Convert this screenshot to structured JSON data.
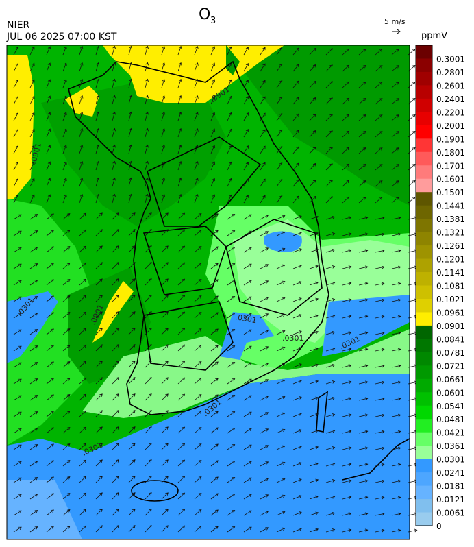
{
  "header": {
    "title": {
      "main": "O",
      "sub": "3"
    },
    "agency": "NIER",
    "datetime": "JUL 06 2025 07:00 KST"
  },
  "wind_scale": {
    "label": "5 m/s"
  },
  "colorbar": {
    "unit": "ppmV",
    "levels": [
      {
        "label": "0.3001",
        "color": "#6b0000"
      },
      {
        "label": "0.2801",
        "color": "#8b0000"
      },
      {
        "label": "0.2601",
        "color": "#a00000"
      },
      {
        "label": "0.2401",
        "color": "#b80000"
      },
      {
        "label": "0.2201",
        "color": "#d00000"
      },
      {
        "label": "0.2001",
        "color": "#e80000"
      },
      {
        "label": "0.1901",
        "color": "#ff0000"
      },
      {
        "label": "0.1801",
        "color": "#ff3535"
      },
      {
        "label": "0.1701",
        "color": "#ff5a5a"
      },
      {
        "label": "0.1601",
        "color": "#ff7b7b"
      },
      {
        "label": "0.1501",
        "color": "#ff9c9c"
      },
      {
        "label": "0.1441",
        "color": "#5e5600"
      },
      {
        "label": "0.1381",
        "color": "#6e6600"
      },
      {
        "label": "0.1321",
        "color": "#7e7500"
      },
      {
        "label": "0.1261",
        "color": "#8e8400"
      },
      {
        "label": "0.1201",
        "color": "#9e9300"
      },
      {
        "label": "0.1141",
        "color": "#aea200"
      },
      {
        "label": "0.1081",
        "color": "#beb100"
      },
      {
        "label": "0.1021",
        "color": "#cec000"
      },
      {
        "label": "0.0961",
        "color": "#dfd000"
      },
      {
        "label": "0.0901",
        "color": "#ffee00"
      },
      {
        "label": "0.0841",
        "color": "#006600"
      },
      {
        "label": "0.0781",
        "color": "#007700"
      },
      {
        "label": "0.0721",
        "color": "#008800"
      },
      {
        "label": "0.0661",
        "color": "#009900"
      },
      {
        "label": "0.0601",
        "color": "#00aa00"
      },
      {
        "label": "0.0541",
        "color": "#00c000"
      },
      {
        "label": "0.0481",
        "color": "#00d800"
      },
      {
        "label": "0.0421",
        "color": "#22ee22"
      },
      {
        "label": "0.0361",
        "color": "#66ff66"
      },
      {
        "label": "0.0301",
        "color": "#99ff99"
      },
      {
        "label": "0.0241",
        "color": "#3399ff"
      },
      {
        "label": "0.0181",
        "color": "#4da6ff"
      },
      {
        "label": "0.0121",
        "color": "#66b3ff"
      },
      {
        "label": "0.0061",
        "color": "#80bfee"
      },
      {
        "label": "0",
        "color": "#99ccee"
      }
    ]
  },
  "contour_labels": [
    ".0301",
    ".0901",
    ".0901",
    ".0901",
    ".0301",
    ".0301",
    ".0301",
    ".0301",
    ".0301"
  ]
}
